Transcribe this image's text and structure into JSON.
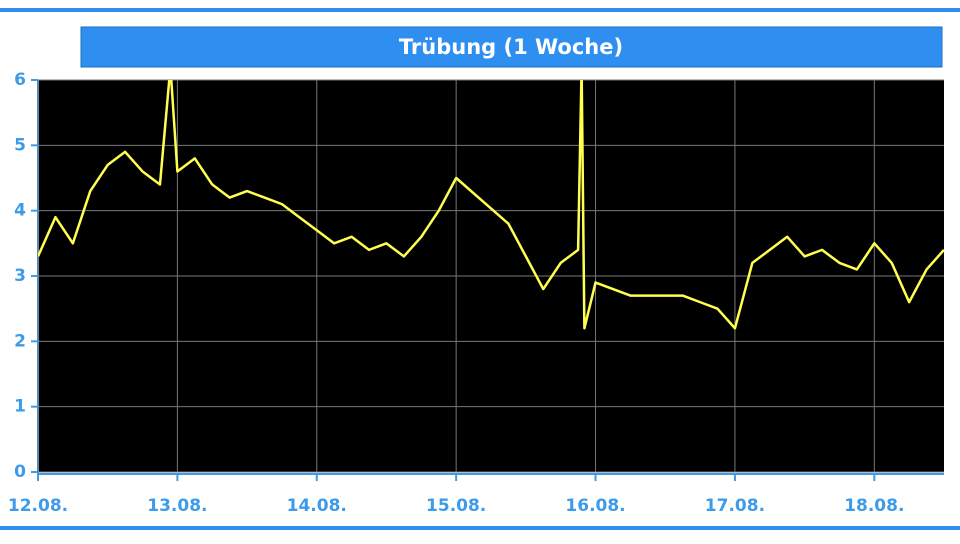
{
  "chart_data": {
    "type": "line",
    "title": "Trübung (1 Woche)",
    "x": [
      0,
      0.125,
      0.25,
      0.375,
      0.5,
      0.625,
      0.75,
      0.875,
      0.95,
      1.0,
      1.125,
      1.25,
      1.375,
      1.5,
      1.625,
      1.75,
      1.875,
      2.0,
      2.125,
      2.25,
      2.375,
      2.5,
      2.625,
      2.75,
      2.875,
      3.0,
      3.375,
      3.5,
      3.625,
      3.75,
      3.875,
      3.9,
      3.92,
      4.0,
      4.125,
      4.25,
      4.375,
      4.5,
      4.625,
      4.75,
      4.875,
      5.0,
      5.125,
      5.25,
      5.375,
      5.5,
      5.625,
      5.75,
      5.875,
      6.0,
      6.125,
      6.25,
      6.375,
      6.5
    ],
    "series": [
      {
        "color": "#ffff50",
        "values": [
          3.3,
          3.9,
          3.5,
          4.3,
          4.7,
          4.9,
          4.6,
          4.4,
          6.2,
          4.6,
          4.8,
          4.4,
          4.2,
          4.3,
          4.2,
          4.1,
          3.9,
          3.7,
          3.5,
          3.6,
          3.4,
          3.5,
          3.3,
          3.6,
          4.0,
          4.5,
          3.8,
          3.3,
          2.8,
          3.2,
          3.4,
          6.2,
          2.2,
          2.9,
          2.8,
          2.7,
          2.7,
          2.7,
          2.7,
          2.6,
          2.5,
          2.2,
          3.2,
          3.4,
          3.6,
          3.3,
          3.4,
          3.2,
          3.1,
          3.5,
          3.2,
          2.6,
          3.1,
          3.4
        ]
      }
    ],
    "xlim": [
      0,
      6.5
    ],
    "ylim": [
      0,
      6
    ],
    "xticks": [
      {
        "value": 0,
        "label": "12.08."
      },
      {
        "value": 1,
        "label": "13.08."
      },
      {
        "value": 2,
        "label": "14.08."
      },
      {
        "value": 3,
        "label": "15.08."
      },
      {
        "value": 4,
        "label": "16.08."
      },
      {
        "value": 5,
        "label": "17.08."
      },
      {
        "value": 6,
        "label": "18.08."
      }
    ],
    "yticks": [
      0,
      1,
      2,
      3,
      4,
      5,
      6
    ],
    "grid": true
  }
}
